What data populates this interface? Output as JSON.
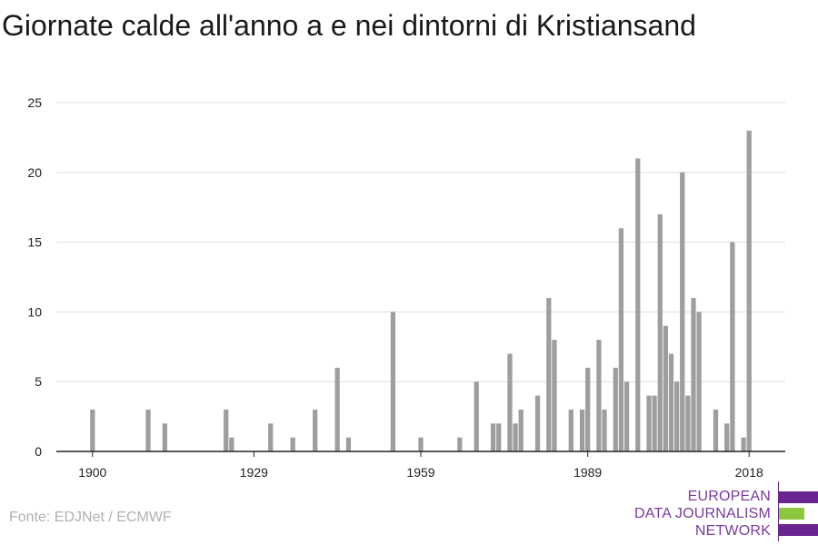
{
  "header": {
    "title": "Giornate calde all'anno a e nei dintorni di Kristiansand"
  },
  "footer": {
    "source": "Fonte: EDJNet / ECMWF"
  },
  "logo": {
    "lines": [
      "EUROPEAN",
      "DATA JOURNALISM",
      "NETWORK"
    ],
    "colors": {
      "purple": "#6b2590",
      "green": "#8dc63f"
    }
  },
  "chart_data": {
    "type": "bar",
    "title": "Giornate calde all'anno a e nei dintorni di Kristiansand",
    "xlabel": "",
    "ylabel": "",
    "ylim": [
      0,
      25
    ],
    "xlim": [
      1893.5,
      2024.5
    ],
    "yticks": [
      0,
      5,
      10,
      15,
      20,
      25
    ],
    "xticks": [
      1900,
      1929,
      1959,
      1989,
      2018
    ],
    "grid": true,
    "bar_color": "#9e9e9e",
    "x": [
      1900,
      1910,
      1913,
      1924,
      1925,
      1932,
      1936,
      1940,
      1944,
      1946,
      1954,
      1959,
      1966,
      1969,
      1972,
      1973,
      1975,
      1976,
      1977,
      1980,
      1982,
      1983,
      1986,
      1988,
      1989,
      1991,
      1992,
      1994,
      1995,
      1996,
      1998,
      2000,
      2001,
      2002,
      2003,
      2004,
      2005,
      2006,
      2007,
      2008,
      2009,
      2012,
      2014,
      2015,
      2017,
      2018
    ],
    "values": [
      3,
      3,
      2,
      3,
      1,
      2,
      1,
      3,
      6,
      1,
      10,
      1,
      1,
      5,
      2,
      2,
      7,
      2,
      3,
      4,
      11,
      8,
      3,
      3,
      6,
      8,
      3,
      6,
      16,
      5,
      21,
      4,
      4,
      17,
      9,
      7,
      5,
      20,
      4,
      11,
      10,
      3,
      2,
      15,
      1,
      23
    ]
  }
}
